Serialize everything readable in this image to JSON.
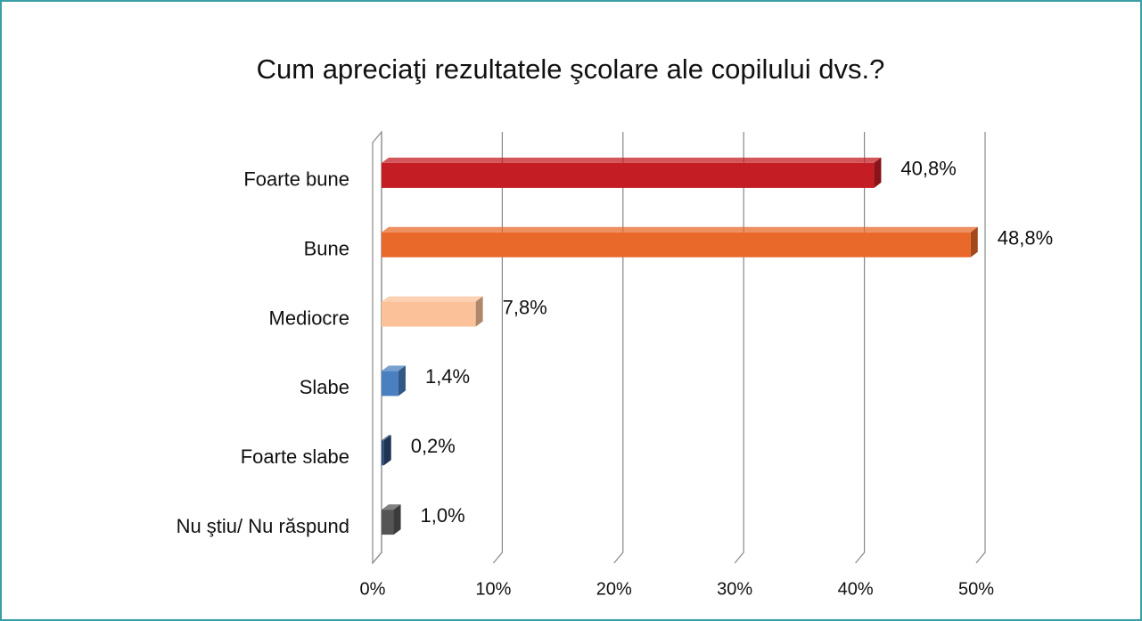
{
  "chart_data": {
    "type": "bar",
    "orientation": "horizontal",
    "title": "Cum apreciaţi rezultatele şcolare ale copilului dvs.?",
    "categories": [
      "Foarte bune",
      "Bune",
      "Mediocre",
      "Slabe",
      "Foarte slabe",
      "Nu ştiu/ Nu răspund"
    ],
    "values": [
      40.8,
      48.8,
      7.8,
      1.4,
      0.2,
      1.0
    ],
    "value_labels": [
      "40,8%",
      "48,8%",
      "7,8%",
      "1,4%",
      "0,2%",
      "1,0%"
    ],
    "colors": [
      "#c41e24",
      "#e8692a",
      "#fbc29a",
      "#4a7fc0",
      "#2b4a78",
      "#555555"
    ],
    "xlim": [
      0,
      50
    ],
    "xticks": [
      {
        "value": 0,
        "label": "0%"
      },
      {
        "value": 10,
        "label": "10%"
      },
      {
        "value": 20,
        "label": "20%"
      },
      {
        "value": 30,
        "label": "30%"
      },
      {
        "value": 40,
        "label": "40%"
      },
      {
        "value": 50,
        "label": "50%"
      }
    ],
    "grid": true
  }
}
